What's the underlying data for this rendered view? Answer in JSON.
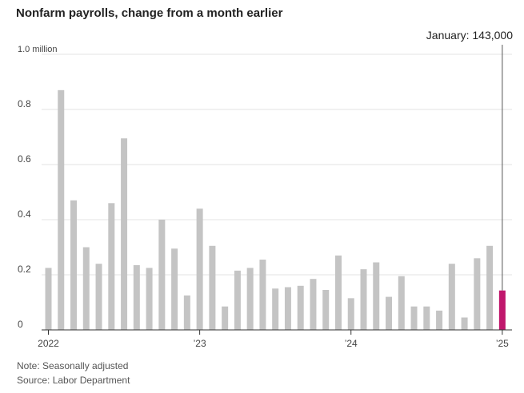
{
  "chart_data": {
    "type": "bar",
    "title": "Nonfarm payrolls, change from a month earlier",
    "ylabel": "",
    "ylim": [
      0,
      1.0
    ],
    "y_ticks": [
      {
        "value": 0,
        "label": "0"
      },
      {
        "value": 0.2,
        "label": "0.2"
      },
      {
        "value": 0.4,
        "label": "0.4"
      },
      {
        "value": 0.6,
        "label": "0.6"
      },
      {
        "value": 0.8,
        "label": "0.8"
      },
      {
        "value": 1.0,
        "label": "1.0 million"
      }
    ],
    "grid": true,
    "categories": [
      "Jan 2022",
      "Feb 2022",
      "Mar 2022",
      "Apr 2022",
      "May 2022",
      "Jun 2022",
      "Jul 2022",
      "Aug 2022",
      "Sep 2022",
      "Oct 2022",
      "Nov 2022",
      "Dec 2022",
      "Jan 2023",
      "Feb 2023",
      "Mar 2023",
      "Apr 2023",
      "May 2023",
      "Jun 2023",
      "Jul 2023",
      "Aug 2023",
      "Sep 2023",
      "Oct 2023",
      "Nov 2023",
      "Dec 2023",
      "Jan 2024",
      "Feb 2024",
      "Mar 2024",
      "Apr 2024",
      "May 2024",
      "Jun 2024",
      "Jul 2024",
      "Aug 2024",
      "Sep 2024",
      "Oct 2024",
      "Nov 2024",
      "Dec 2024",
      "Jan 2025"
    ],
    "values": [
      0.225,
      0.87,
      0.47,
      0.3,
      0.24,
      0.46,
      0.695,
      0.235,
      0.225,
      0.4,
      0.295,
      0.125,
      0.44,
      0.305,
      0.085,
      0.215,
      0.225,
      0.255,
      0.15,
      0.155,
      0.16,
      0.185,
      0.145,
      0.27,
      0.115,
      0.22,
      0.245,
      0.12,
      0.195,
      0.085,
      0.085,
      0.07,
      0.24,
      0.045,
      0.26,
      0.305,
      0.143
    ],
    "x_tick_labels": [
      {
        "index": 0,
        "label": "2022"
      },
      {
        "index": 12,
        "label": "’23"
      },
      {
        "index": 24,
        "label": "’24"
      },
      {
        "index": 36,
        "label": "’25"
      }
    ],
    "highlight": {
      "index": 36,
      "label": "January: 143,000"
    },
    "colors": {
      "bar": "#c4c4c4",
      "highlight": "#c0176c",
      "grid": "#e3e3e3",
      "axis": "#333333",
      "annotation_line": "#555555"
    }
  },
  "notes": {
    "note": "Note: Seasonally adjusted",
    "source": "Source: Labor Department"
  }
}
